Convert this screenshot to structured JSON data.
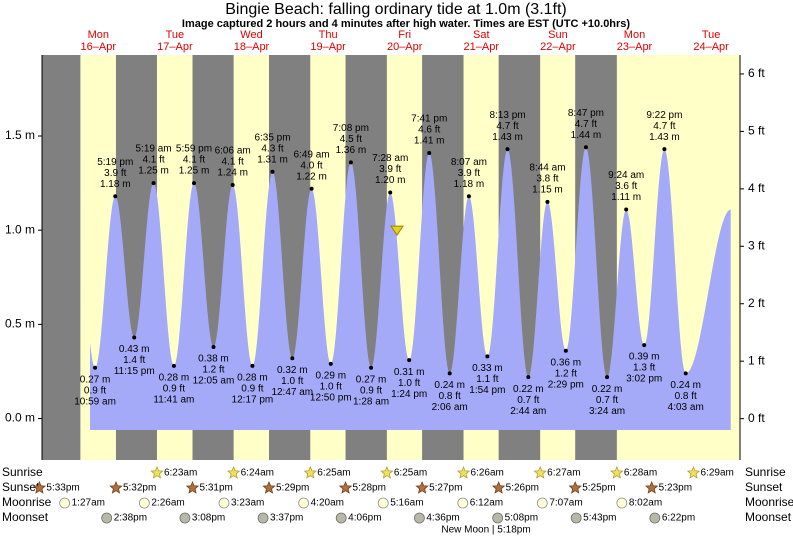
{
  "chart_data": {
    "type": "area",
    "title": "Bingie Beach: falling  ordinary tide at 1.0m (3.1ft)",
    "subtitle": "Image captured 2 hours and 4 minutes after high water. Times are EST (UTC +10.0hrs)",
    "days": [
      {
        "name": "Mon",
        "date": "16–Apr"
      },
      {
        "name": "Tue",
        "date": "17–Apr"
      },
      {
        "name": "Wed",
        "date": "18–Apr"
      },
      {
        "name": "Thu",
        "date": "19–Apr"
      },
      {
        "name": "Fri",
        "date": "20–Apr"
      },
      {
        "name": "Sat",
        "date": "21–Apr"
      },
      {
        "name": "Sun",
        "date": "22–Apr"
      },
      {
        "name": "Mon",
        "date": "23–Apr"
      },
      {
        "name": "Tue",
        "date": "24–Apr"
      }
    ],
    "ylim": [
      -0.22,
      1.93
    ],
    "yticks": [
      {
        "value": 0,
        "label": "0.0 m"
      },
      {
        "value": 0.5,
        "label": "0.5 m"
      },
      {
        "value": 1,
        "label": "1.0 m"
      },
      {
        "value": 1.5,
        "label": "1.5 m"
      }
    ],
    "y2lim": [
      -0.72,
      6.33
    ],
    "y2ticks": [
      {
        "value": 0,
        "label": "0 ft"
      },
      {
        "value": 1,
        "label": "1 ft"
      },
      {
        "value": 2,
        "label": "2 ft"
      },
      {
        "value": 3,
        "label": "3 ft"
      },
      {
        "value": 4,
        "label": "4 ft"
      },
      {
        "value": 5,
        "label": "5 ft"
      },
      {
        "value": 6,
        "label": "6 ft"
      }
    ],
    "color": "#a4aaf8",
    "current_value": 1.0,
    "tides": {
      "times": [
        "10:59 am",
        "5:19 pm",
        "11:15 pm",
        "5:19 am",
        "11:41 am",
        "5:59 pm",
        "12:05 am",
        "6:06 am",
        "12:17 pm",
        "6:35 pm",
        "12:47 am",
        "6:49 am",
        "12:50 pm",
        "7:08 pm",
        "1:28 am",
        "7:28 am",
        "1:24 pm",
        "7:41 pm",
        "2:06 am",
        "8:07 am",
        "1:54 pm",
        "8:13 pm",
        "2:44 am",
        "8:44 am",
        "2:29 pm",
        "8:47 pm",
        "3:24 am",
        "9:24 am",
        "3:02 pm",
        "9:22 pm",
        "4:03 am"
      ],
      "values": [
        0.27,
        1.18,
        0.43,
        1.25,
        0.28,
        1.25,
        0.38,
        1.24,
        0.28,
        1.31,
        0.32,
        1.22,
        0.29,
        1.36,
        0.27,
        1.2,
        0.31,
        1.41,
        0.24,
        1.18,
        0.33,
        1.43,
        0.22,
        1.15,
        0.36,
        1.44,
        0.22,
        1.11,
        0.39,
        1.43,
        0.24
      ],
      "value_labels": [
        "0.27 m",
        "1.18 m",
        "0.43 m",
        "1.25 m",
        "0.28 m",
        "1.25 m",
        "0.38 m",
        "1.24 m",
        "0.28 m",
        "1.31 m",
        "0.32 m",
        "1.22 m",
        "0.29 m",
        "1.36 m",
        "0.27 m",
        "1.20 m",
        "0.31 m",
        "1.41 m",
        "0.24 m",
        "1.18 m",
        "0.33 m",
        "1.43 m",
        "0.22 m",
        "1.15 m",
        "0.36 m",
        "1.44 m",
        "0.22 m",
        "1.11 m",
        "0.39 m",
        "1.43 m",
        "0.24 m"
      ],
      "ft_labels": [
        "0.9 ft",
        "3.9 ft",
        "1.4 ft",
        "4.1 ft",
        "0.9 ft",
        "4.1 ft",
        "1.2 ft",
        "4.1 ft",
        "0.9 ft",
        "4.3 ft",
        "1.0 ft",
        "4.0 ft",
        "1.0 ft",
        "4.5 ft",
        "0.9 ft",
        "3.9 ft",
        "1.0 ft",
        "4.6 ft",
        "0.8 ft",
        "3.9 ft",
        "1.1 ft",
        "4.7 ft",
        "0.7 ft",
        "3.8 ft",
        "1.2 ft",
        "4.7 ft",
        "0.7 ft",
        "3.6 ft",
        "1.3 ft",
        "4.7 ft",
        "0.8 ft"
      ]
    },
    "sunrise": {
      "label": "Sunrise",
      "times": [
        "6:23am",
        "6:24am",
        "6:25am",
        "6:25am",
        "6:26am",
        "6:27am",
        "6:28am",
        "6:29am"
      ]
    },
    "sunset": {
      "label": "Sunset",
      "times": [
        "5:33pm",
        "5:32pm",
        "5:31pm",
        "5:29pm",
        "5:28pm",
        "5:27pm",
        "5:26pm",
        "5:25pm",
        "5:23pm"
      ]
    },
    "moonrise": {
      "label": "Moonrise",
      "times": [
        "1:27am",
        "2:26am",
        "3:23am",
        "4:20am",
        "5:16am",
        "6:12am",
        "7:07am",
        "8:02am"
      ]
    },
    "moonset": {
      "label": "Moonset",
      "times": [
        "2:38pm",
        "3:08pm",
        "3:37pm",
        "4:06pm",
        "4:36pm",
        "5:08pm",
        "5:43pm",
        "6:22pm"
      ]
    },
    "moon_phase": "New Moon | 5:18pm"
  }
}
